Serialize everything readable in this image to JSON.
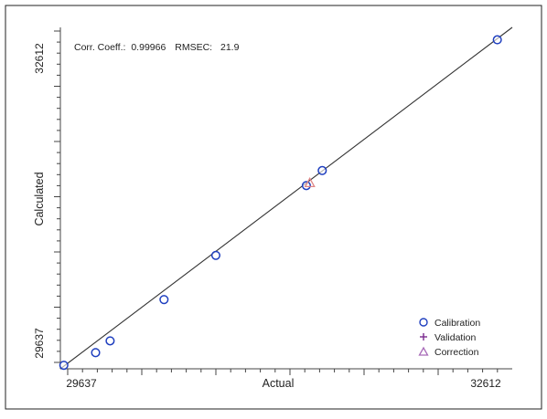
{
  "chart_data": {
    "type": "scatter",
    "title": "",
    "stats": {
      "corr_label": "Corr. Coeff.:",
      "corr_value": "0.99966",
      "rmsec_label": "RMSEC:",
      "rmsec_value": "21.9"
    },
    "xlabel": "Actual",
    "ylabel": "Calculated",
    "xlim": [
      29450,
      32720
    ],
    "ylim": [
      29420,
      32720
    ],
    "x_tick_labels": [
      "29637",
      "32612"
    ],
    "y_tick_labels": [
      "29637",
      "32612"
    ],
    "fit_line": {
      "from": [
        29450,
        29420
      ],
      "to": [
        32720,
        32720
      ]
    },
    "legend_position": "bottom-right",
    "series": [
      {
        "name": "Calibration",
        "marker": "circle",
        "color": "#1f3fbf",
        "x": [
          29475,
          29705,
          29810,
          30200,
          30575,
          31230,
          31345,
          32612
        ],
        "y": [
          29454,
          29576,
          29690,
          30089,
          30516,
          31191,
          31336,
          32600
        ]
      },
      {
        "name": "Validation",
        "marker": "plus",
        "color": "#7b2a8e",
        "x": [],
        "y": []
      },
      {
        "name": "Correction",
        "marker": "triangle",
        "color": "#a86bb8",
        "x": [
          31255
        ],
        "y": [
          31217
        ]
      }
    ]
  }
}
